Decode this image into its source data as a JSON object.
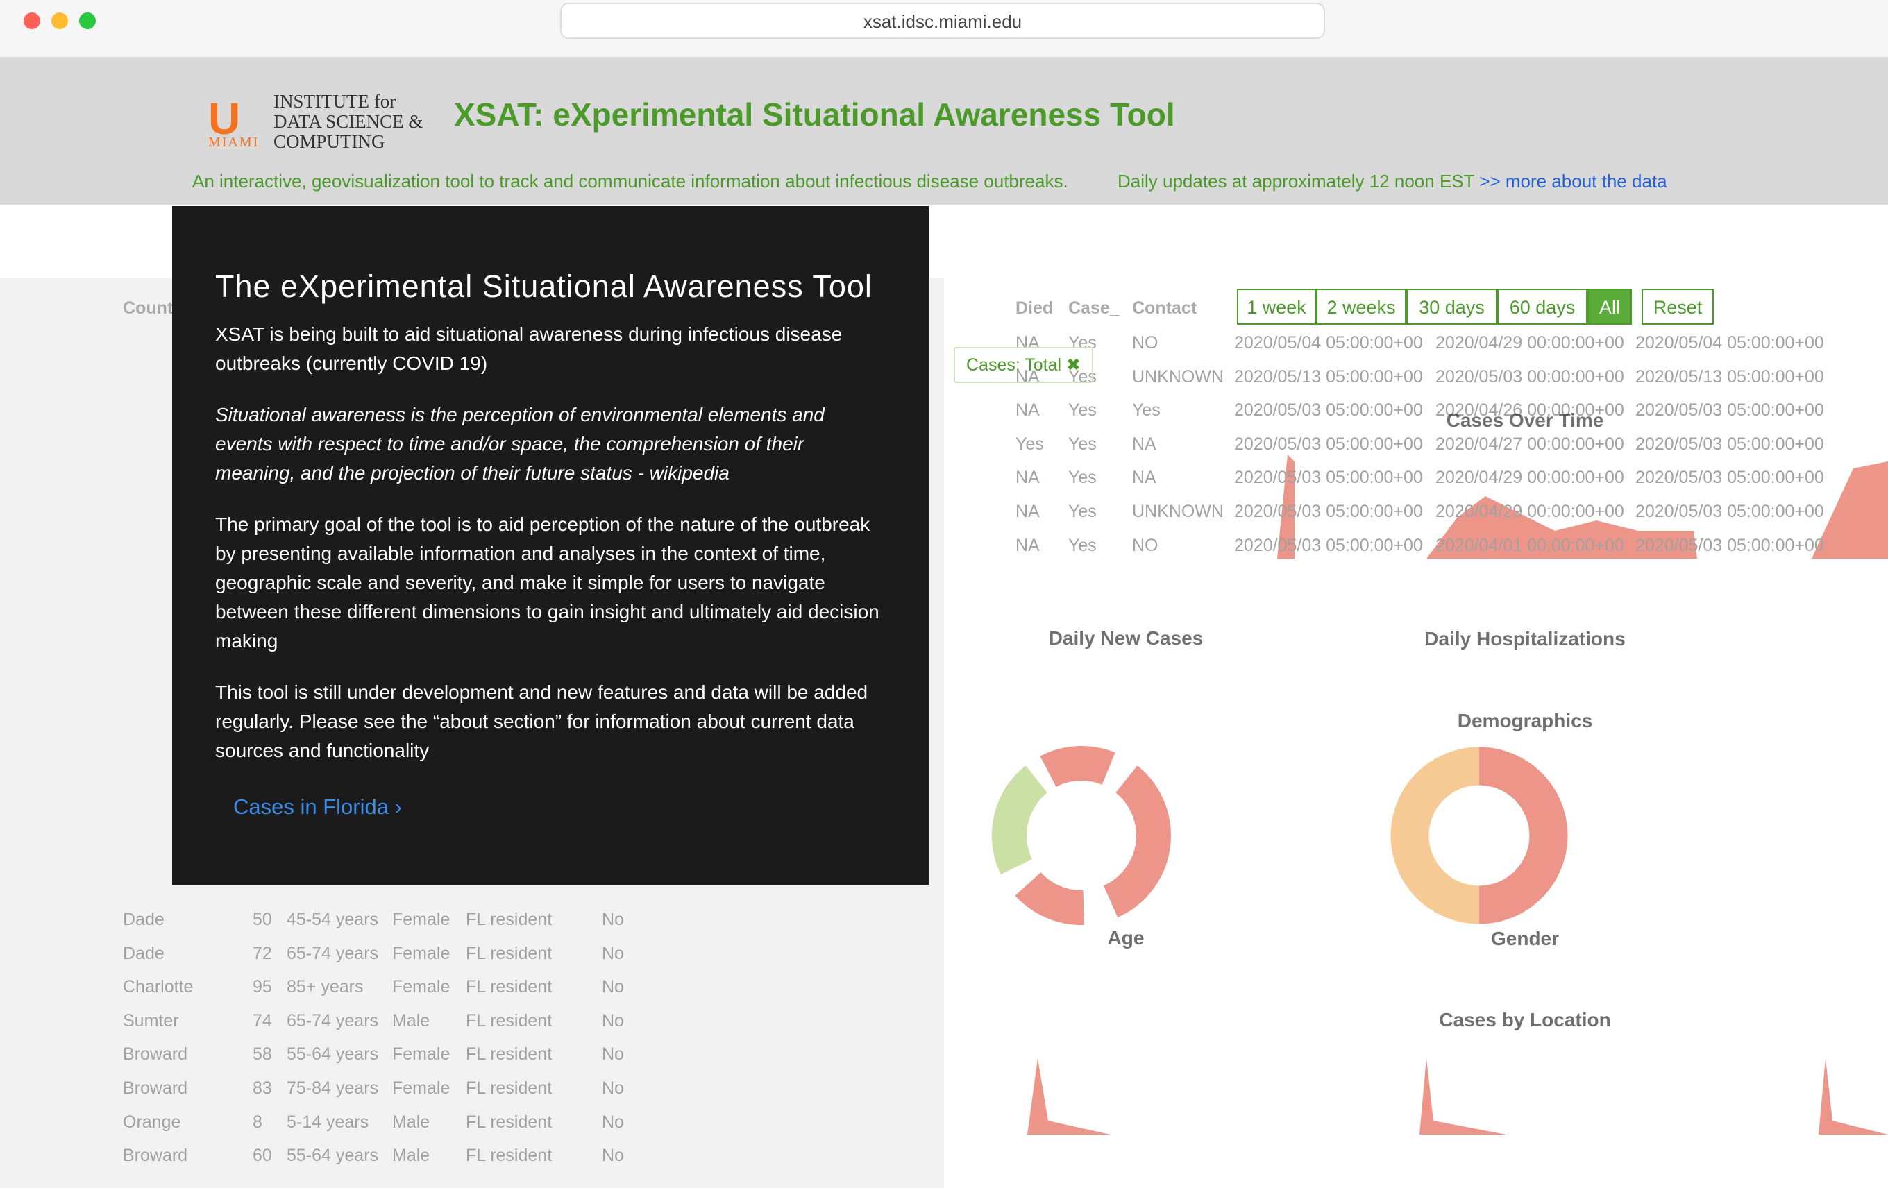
{
  "browser": {
    "url": "xsat.idsc.miami.edu"
  },
  "header": {
    "logo_lines": [
      "INSTITUTE for",
      "DATA SCIENCE &",
      "COMPUTING"
    ],
    "logo_sub": "MIAMI",
    "title": "XSAT: eXperimental Situational Awareness Tool",
    "tagline": "An interactive, geovisualization tool to track and communicate information about infectious disease outbreaks.",
    "updates": "Daily updates at approximately 12 noon EST",
    "link": ">> more about the data"
  },
  "modal": {
    "title": "The eXperimental Situational Awareness Tool",
    "intro": "XSAT is being built to aid situational awareness during infectious disease outbreaks (currently COVID 19)",
    "quote": "Situational awareness is the perception of environmental elements and events with respect to time and/or space, the comprehension of their meaning, and the projection of their future status - wikipedia",
    "goal": "The primary goal of the tool is to aid perception of the nature of the outbreak by presenting available information and analyses in the context of time, geographic scale and severity, and make it simple for users to navigate between these different dimensions to gain insight and ultimately aid decision making",
    "note": "This tool is still under development and new features and data will be added regularly. Please see the “about section” for information about current data sources and functionality",
    "link": "Cases in Florida ›"
  },
  "controls": {
    "ranges": [
      "1 week",
      "2 weeks",
      "30 days",
      "60 days",
      "All",
      "Reset"
    ],
    "filter": "Cases: Total ✖"
  },
  "charts": {
    "cases_over_time": "Cases Over Time",
    "daily_new": "Daily New Cases",
    "daily_hosp": "Daily Hospitalizations",
    "demographics": "Demographics",
    "age": "Age",
    "gender": "Gender",
    "by_location": "Cases by Location"
  },
  "left_table": {
    "header": "County",
    "rows": [
      [
        "Dade",
        "50",
        "45-54 years",
        "Female",
        "FL resident",
        "No"
      ],
      [
        "Dade",
        "72",
        "65-74 years",
        "Female",
        "FL resident",
        "No"
      ],
      [
        "Charlotte",
        "95",
        "85+ years",
        "Female",
        "FL resident",
        "No"
      ],
      [
        "Sumter",
        "74",
        "65-74 years",
        "Male",
        "FL resident",
        "No"
      ],
      [
        "Broward",
        "58",
        "55-64 years",
        "Female",
        "FL resident",
        "No"
      ],
      [
        "Broward",
        "83",
        "75-84 years",
        "Female",
        "FL resident",
        "No"
      ],
      [
        "Orange",
        "8",
        "5-14 years",
        "Male",
        "FL resident",
        "No"
      ],
      [
        "Broward",
        "60",
        "55-64 years",
        "Male",
        "FL resident",
        "No"
      ]
    ]
  },
  "right_table": {
    "headers": [
      "Died",
      "Case_",
      "Contact"
    ],
    "rows": [
      [
        "NA",
        "Yes",
        "NO",
        "2020/05/04 05:00:00+00",
        "2020/04/29 00:00:00+00",
        "2020/05/04 05:00:00+00"
      ],
      [
        "NA",
        "Yes",
        "UNKNOWN",
        "2020/05/13 05:00:00+00",
        "2020/05/03 00:00:00+00",
        "2020/05/13 05:00:00+00"
      ],
      [
        "NA",
        "Yes",
        "Yes",
        "2020/05/03 05:00:00+00",
        "2020/04/26 00:00:00+00",
        "2020/05/03 05:00:00+00"
      ],
      [
        "Yes",
        "Yes",
        "NA",
        "2020/05/03 05:00:00+00",
        "2020/04/27 00:00:00+00",
        "2020/05/03 05:00:00+00"
      ],
      [
        "NA",
        "Yes",
        "NA",
        "2020/05/03 05:00:00+00",
        "2020/04/29 00:00:00+00",
        "2020/05/03 05:00:00+00"
      ],
      [
        "NA",
        "Yes",
        "UNKNOWN",
        "2020/05/03 05:00:00+00",
        "2020/04/29 00:00:00+00",
        "2020/05/03 05:00:00+00"
      ],
      [
        "NA",
        "Yes",
        "NO",
        "2020/05/03 05:00:00+00",
        "2020/04/01 00:00:00+00",
        "2020/05/03 05:00:00+00"
      ]
    ]
  }
}
